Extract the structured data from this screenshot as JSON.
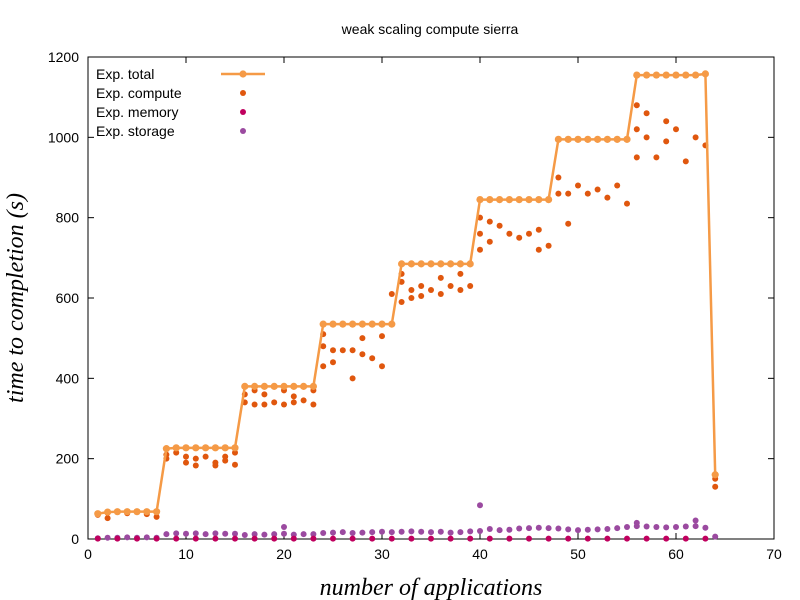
{
  "chart_data": {
    "type": "scatter",
    "title": "weak scaling compute sierra",
    "xlabel": "number of applications",
    "ylabel": "time to completion (s)",
    "xlim": [
      0,
      70
    ],
    "ylim": [
      0,
      1200
    ],
    "xticks": [
      "0",
      "10",
      "20",
      "30",
      "40",
      "50",
      "60",
      "70"
    ],
    "yticks": [
      "0",
      "200",
      "400",
      "600",
      "800",
      "1000",
      "1200"
    ],
    "grid": false,
    "legend_position": "top-left",
    "series": [
      {
        "name": "Exp.  total",
        "style": "line-points",
        "color": "#f59a46",
        "x": [
          1,
          2,
          3,
          4,
          5,
          6,
          7,
          8,
          9,
          10,
          11,
          12,
          13,
          14,
          15,
          16,
          17,
          18,
          19,
          20,
          21,
          22,
          23,
          24,
          25,
          26,
          27,
          28,
          29,
          30,
          31,
          32,
          33,
          34,
          35,
          36,
          37,
          38,
          39,
          40,
          41,
          42,
          43,
          44,
          45,
          46,
          47,
          48,
          49,
          50,
          51,
          52,
          53,
          54,
          55,
          56,
          57,
          58,
          59,
          60,
          61,
          62,
          63,
          64
        ],
        "y": [
          63,
          67,
          68,
          68,
          68,
          68,
          68,
          225,
          227,
          227,
          227,
          227,
          227,
          227,
          227,
          380,
          380,
          380,
          380,
          380,
          380,
          380,
          380,
          535,
          535,
          535,
          535,
          535,
          535,
          535,
          535,
          685,
          685,
          685,
          685,
          685,
          685,
          685,
          685,
          845,
          845,
          845,
          845,
          845,
          845,
          845,
          845,
          995,
          995,
          995,
          995,
          995,
          995,
          995,
          995,
          1155,
          1155,
          1155,
          1155,
          1155,
          1155,
          1155,
          1158,
          160
        ]
      },
      {
        "name": "Exp.  compute",
        "style": "points",
        "color": "#e0570e",
        "x": [
          1,
          2,
          2,
          4,
          6,
          7,
          8,
          8,
          9,
          10,
          10,
          11,
          11,
          12,
          13,
          13,
          14,
          14,
          15,
          15,
          16,
          16,
          17,
          17,
          18,
          18,
          19,
          20,
          20,
          21,
          21,
          22,
          23,
          23,
          24,
          24,
          24,
          25,
          25,
          26,
          27,
          27,
          28,
          28,
          29,
          30,
          30,
          31,
          32,
          32,
          32,
          33,
          33,
          34,
          34,
          35,
          36,
          36,
          37,
          38,
          38,
          39,
          40,
          40,
          40,
          41,
          41,
          42,
          43,
          44,
          45,
          46,
          46,
          47,
          48,
          48,
          49,
          49,
          50,
          51,
          52,
          53,
          54,
          55,
          56,
          56,
          56,
          57,
          57,
          58,
          59,
          59,
          60,
          61,
          62,
          63,
          64,
          64
        ],
        "y": [
          60,
          52,
          65,
          64,
          62,
          55,
          210,
          200,
          215,
          205,
          190,
          200,
          183,
          205,
          190,
          183,
          205,
          195,
          215,
          185,
          360,
          340,
          370,
          335,
          360,
          335,
          340,
          370,
          335,
          355,
          340,
          345,
          370,
          335,
          430,
          480,
          510,
          440,
          470,
          470,
          400,
          470,
          500,
          460,
          450,
          505,
          430,
          610,
          640,
          660,
          590,
          600,
          620,
          630,
          605,
          620,
          650,
          610,
          630,
          660,
          620,
          630,
          720,
          760,
          800,
          740,
          790,
          780,
          760,
          750,
          760,
          720,
          770,
          730,
          860,
          900,
          860,
          785,
          880,
          860,
          870,
          850,
          880,
          835,
          950,
          1020,
          1080,
          1000,
          1060,
          950,
          1040,
          990,
          1020,
          940,
          1000,
          980,
          130,
          150
        ]
      },
      {
        "name": "Exp.  memory",
        "style": "points",
        "color": "#c0005e",
        "x": [
          1,
          3,
          5,
          7,
          9,
          11,
          13,
          15,
          17,
          19,
          21,
          23,
          25,
          27,
          29,
          31,
          33,
          35,
          37,
          39,
          41,
          43,
          45,
          47,
          49,
          51,
          53,
          55,
          57,
          59,
          61,
          63
        ],
        "y": [
          1,
          1,
          1,
          1,
          1,
          1,
          1,
          1,
          1,
          1,
          1,
          1,
          1,
          1,
          1,
          1,
          1,
          1,
          1,
          1,
          1,
          1,
          1,
          1,
          1,
          1,
          1,
          1,
          1,
          1,
          1,
          1
        ]
      },
      {
        "name": "Exp.  storage",
        "style": "points",
        "color": "#9b4aa0",
        "x": [
          1,
          2,
          3,
          4,
          5,
          6,
          7,
          8,
          9,
          10,
          11,
          12,
          13,
          14,
          15,
          16,
          17,
          18,
          19,
          20,
          21,
          22,
          23,
          24,
          25,
          26,
          27,
          28,
          29,
          30,
          31,
          32,
          33,
          34,
          35,
          36,
          37,
          38,
          39,
          40,
          41,
          42,
          43,
          44,
          45,
          46,
          47,
          48,
          49,
          50,
          51,
          52,
          53,
          54,
          55,
          56,
          57,
          58,
          59,
          60,
          61,
          62,
          63,
          64,
          20,
          40,
          56,
          62
        ],
        "y": [
          2,
          3,
          3,
          4,
          3,
          4,
          3,
          12,
          14,
          13,
          14,
          12,
          14,
          13,
          13,
          10,
          12,
          11,
          12,
          13,
          11,
          12,
          12,
          15,
          16,
          17,
          15,
          16,
          17,
          18,
          17,
          18,
          19,
          18,
          17,
          18,
          16,
          17,
          19,
          20,
          25,
          22,
          23,
          26,
          27,
          28,
          27,
          26,
          24,
          22,
          23,
          24,
          25,
          27,
          30,
          32,
          31,
          30,
          29,
          30,
          31,
          32,
          28,
          6,
          30,
          84,
          40,
          46
        ]
      }
    ]
  }
}
